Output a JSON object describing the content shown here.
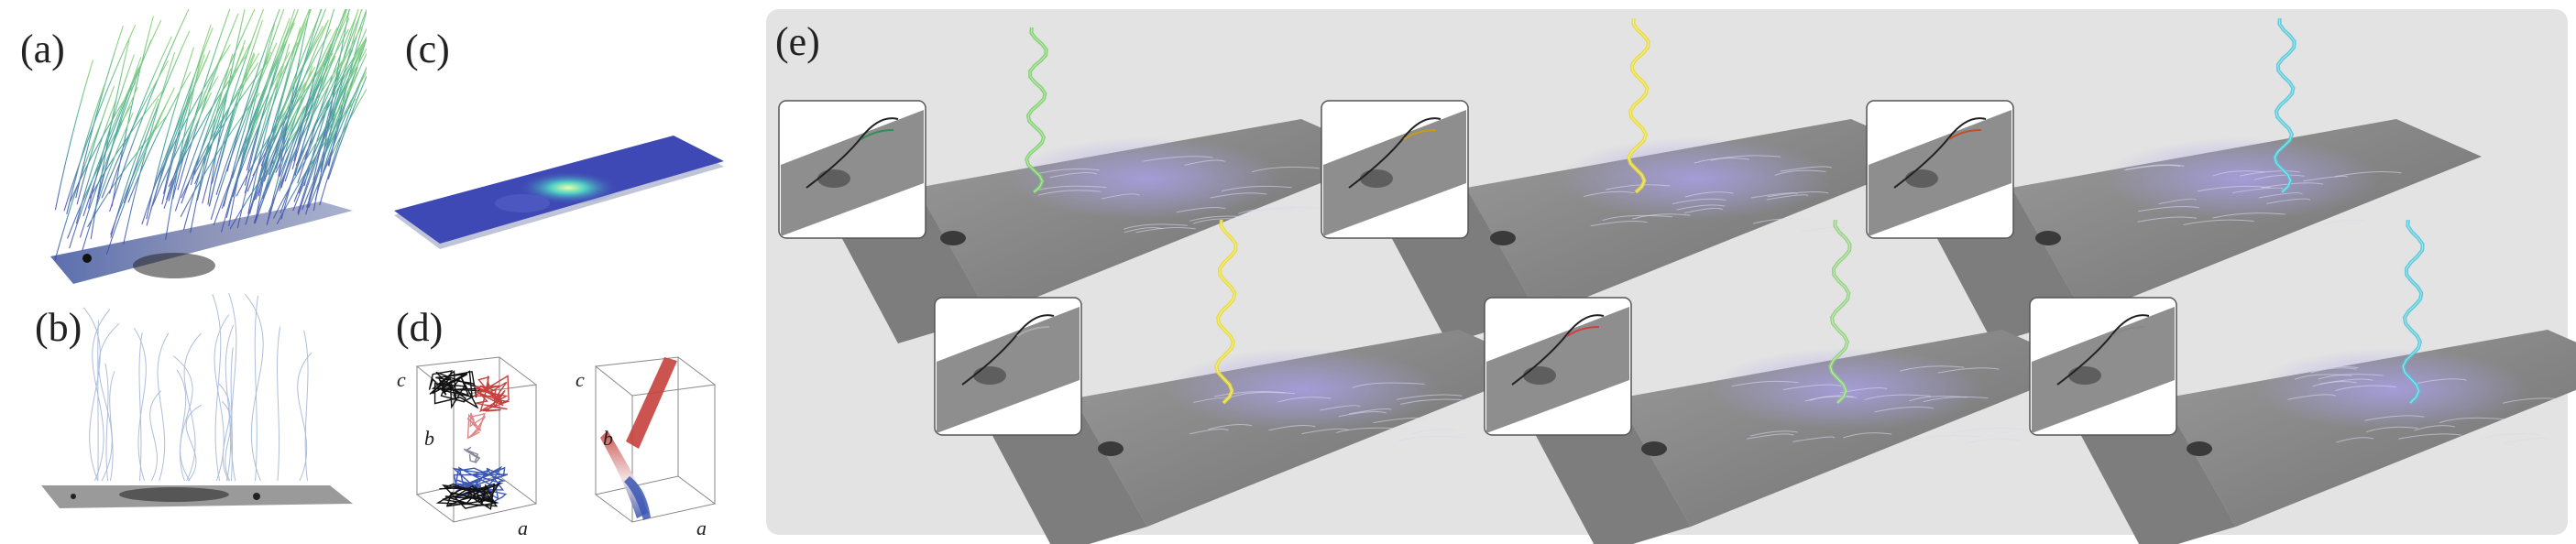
{
  "panels": {
    "a": {
      "label": "(a)"
    },
    "b": {
      "label": "(b)"
    },
    "c": {
      "label": "(c)"
    },
    "d": {
      "label": "(d)",
      "axes": {
        "a": "a",
        "b": "b",
        "c": "c"
      }
    },
    "e": {
      "label": "(e)"
    }
  },
  "colors": {
    "viridis_high": "#7ccf6a",
    "viridis_mid": "#2fa08c",
    "viridis_low": "#4b52b8",
    "field_blue": "#3f49b5",
    "spectrum_red": "#c6413d",
    "spectrum_blue": "#3b57b3",
    "plane_gray": "#8a8a8a",
    "inset_bg": "#ffffff",
    "panel_e_bg": "#e3e3e3"
  },
  "panel_e_cases": [
    {
      "swirl_color": "#7ccf6a",
      "inset_trail": "#2f8f55"
    },
    {
      "swirl_color": "#e8dc2c",
      "inset_trail": "#c79a1a"
    },
    {
      "swirl_color": "#4fc7d8",
      "inset_trail": "#c0502a"
    },
    {
      "swirl_color": "#e8dc2c",
      "inset_trail": "#aaaaaa"
    },
    {
      "swirl_color": "#8fd07a",
      "inset_trail": "#d04040"
    },
    {
      "swirl_color": "#4fc7d8",
      "inset_trail": "#888888"
    }
  ]
}
